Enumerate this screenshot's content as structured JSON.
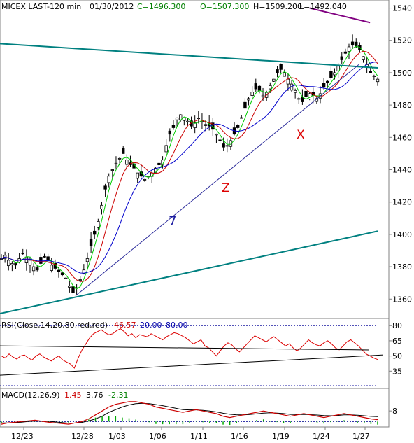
{
  "header": {
    "symbol": "MICEX LAST-120 min",
    "date": "01/30/2012",
    "close": "C=1496.300",
    "open": "O=1507.300",
    "high": "H=1509.200",
    "low": "L=1492.040"
  },
  "colors": {
    "background": "#ffffff",
    "candle": "#000000",
    "ma_fast": "#00cc00",
    "ma_mid": "#cc0000",
    "ma_slow": "#0000cc",
    "trendline": "#008080",
    "resistance_purple": "#800080",
    "rsi_line": "#dd0000",
    "macd_line": "#cc0000",
    "signal_line": "#000000",
    "histogram": "#00aa00",
    "text_close": "#008000",
    "text_rsi_value": "#cc0000",
    "text_rsi_band": "#0000aa"
  },
  "annotations": [
    {
      "text": "7",
      "color": "#1a1aa0"
    },
    {
      "text": "Z",
      "color": "#dd0000"
    },
    {
      "text": "X",
      "color": "#dd0000"
    }
  ],
  "rsi_label": {
    "name": "RSI(Close,14,20,80,red,red)",
    "value": "46.57",
    "low": "20.00",
    "high": "80.00"
  },
  "macd_label": {
    "name": "MACD(12,26,9)",
    "macd": "1.45",
    "signal": "3.76",
    "hist": "-2.31"
  },
  "chart_data": [
    {
      "type": "candlestick",
      "x_labels": [
        "12/23",
        "12/28",
        "1/03",
        "1/06",
        "1/11",
        "1/16",
        "1/19",
        "1/24",
        "1/27"
      ],
      "y_ticks": [
        1360,
        1380,
        1400,
        1420,
        1440,
        1460,
        1480,
        1500,
        1520,
        1540
      ],
      "ylim": [
        1348,
        1545
      ],
      "close_path": [
        1385,
        1387,
        1384,
        1382,
        1381,
        1385,
        1388,
        1386,
        1384,
        1380,
        1378,
        1382,
        1386,
        1384,
        1381,
        1379,
        1377,
        1375,
        1373,
        1368,
        1364,
        1367,
        1372,
        1378,
        1385,
        1393,
        1400,
        1408,
        1418,
        1428,
        1436,
        1440,
        1444,
        1447,
        1450,
        1446,
        1443,
        1441,
        1438,
        1436,
        1434,
        1436,
        1438,
        1441,
        1443,
        1446,
        1455,
        1462,
        1466,
        1472,
        1474,
        1472,
        1470,
        1467,
        1469,
        1472,
        1470,
        1468,
        1467,
        1465,
        1462,
        1458,
        1454,
        1455,
        1458,
        1462,
        1466,
        1472,
        1478,
        1484,
        1488,
        1490,
        1489,
        1486,
        1488,
        1492,
        1496,
        1500,
        1502,
        1500,
        1496,
        1493,
        1489,
        1484,
        1482,
        1485,
        1487,
        1486,
        1484,
        1487,
        1491,
        1494,
        1497,
        1500,
        1504,
        1508,
        1512,
        1516,
        1517,
        1516,
        1514,
        1510,
        1505,
        1500,
        1498,
        1496
      ],
      "candle_count": 106,
      "trendlines": [
        {
          "name": "upper-teal",
          "from": [
            0,
            1518
          ],
          "to": [
            1,
            1503
          ]
        },
        {
          "name": "lower-teal",
          "from": [
            0,
            1351
          ],
          "to": [
            1,
            1402
          ]
        },
        {
          "name": "rising-blue",
          "from": [
            0.2,
            1362
          ],
          "to": [
            0.95,
            1505
          ]
        },
        {
          "name": "purple-resistance",
          "from": [
            0.82,
            1540
          ],
          "to": [
            0.98,
            1531
          ]
        }
      ]
    },
    {
      "type": "line",
      "name": "RSI",
      "y_ticks": [
        35,
        50,
        65,
        80
      ],
      "ylim": [
        20,
        85
      ],
      "values": [
        50,
        48,
        52,
        49,
        47,
        50,
        51,
        48,
        46,
        50,
        52,
        49,
        47,
        45,
        48,
        50,
        46,
        44,
        42,
        38,
        48,
        56,
        62,
        68,
        72,
        74,
        76,
        73,
        71,
        72,
        75,
        77,
        74,
        70,
        72,
        68,
        71,
        70,
        69,
        72,
        70,
        68,
        66,
        69,
        71,
        73,
        72,
        70,
        68,
        65,
        62,
        64,
        66,
        60,
        58,
        54,
        50,
        55,
        60,
        63,
        61,
        57,
        54,
        58,
        62,
        66,
        70,
        68,
        66,
        64,
        67,
        69,
        66,
        63,
        60,
        62,
        58,
        55,
        58,
        62,
        66,
        63,
        61,
        60,
        63,
        65,
        62,
        58,
        56,
        60,
        64,
        66,
        63,
        60,
        56,
        52,
        50,
        48,
        46.5
      ],
      "levels": [
        35,
        50,
        65,
        80
      ]
    },
    {
      "type": "line",
      "name": "MACD",
      "y_ticks": [
        8
      ],
      "macd": [
        -2,
        -1,
        -0.5,
        0,
        0.5,
        1,
        0.2,
        -0.5,
        -1,
        -1.5,
        -2,
        -1,
        0,
        2,
        5,
        8,
        11,
        13,
        14,
        15,
        15,
        14,
        13,
        11,
        10,
        9,
        8,
        7,
        8,
        9,
        8,
        7,
        6,
        4,
        3,
        4,
        5,
        6,
        7,
        8,
        7,
        6,
        5,
        4,
        5,
        6,
        5,
        4,
        3,
        4,
        5,
        6,
        5,
        4,
        3,
        2,
        1.45
      ],
      "signal": [
        -1,
        -1,
        -0.8,
        -0.5,
        0,
        0.3,
        0.4,
        0.2,
        -0.3,
        -0.8,
        -1.2,
        -1.1,
        -0.6,
        0.5,
        2,
        4,
        7,
        9,
        11,
        12.5,
        13.5,
        13.8,
        13.5,
        12.8,
        12,
        11,
        10,
        9,
        8.8,
        8.8,
        8.5,
        8,
        7.3,
        6.3,
        5.5,
        5,
        5,
        5.3,
        5.8,
        6.4,
        6.6,
        6.4,
        6,
        5.4,
        5.3,
        5.4,
        5.2,
        4.9,
        4.5,
        4.4,
        4.6,
        5,
        5,
        4.8,
        4.4,
        3.9,
        3.76
      ]
    }
  ]
}
